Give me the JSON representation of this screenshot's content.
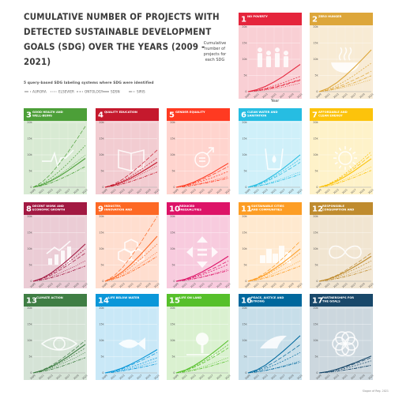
{
  "title": "Cumulative number of projects with detected Sustainable Development Goals (SDG) over the years (2009 - 2021)",
  "methods_title": "5 query-based SDG labeling systems where SDG were identified",
  "legend": [
    {
      "name": "AURORA",
      "dash": "5,2"
    },
    {
      "name": "ELSEVIER",
      "dash": "1,1.5"
    },
    {
      "name": "ONTOLOGY",
      "dash": "2,1.5"
    },
    {
      "name": "SDSN",
      "dash": ""
    },
    {
      "name": "SIRIS",
      "dash": "4,1.2,1,1.2"
    }
  ],
  "ylabel": "Cumulative number of projects for each SDG",
  "xlabel": "Year",
  "credit": "Slogan of Reg. 2021",
  "chart_data": {
    "type": "line",
    "x": [
      2009,
      2011,
      2013,
      2015,
      2017,
      2019,
      2021
    ],
    "x_ticks": [
      "2009",
      "2011",
      "2013",
      "2015",
      "2017",
      "2019",
      "2021"
    ],
    "ylim": [
      0,
      20000
    ],
    "y_ticks": [
      "0",
      "5k",
      "10k",
      "15k",
      "20k"
    ],
    "grid": true,
    "panels": [
      {
        "num": "1",
        "name": "NO POVERTY",
        "color": "#E5243B",
        "icon": "family-icon",
        "series": {
          "AURORA": [
            0,
            300,
            700,
            1200,
            1900,
            2700,
            3500
          ],
          "ELSEVIER": [
            0,
            200,
            500,
            900,
            1400,
            2000,
            2600
          ],
          "ONTOLOGY": [
            0,
            400,
            1000,
            1800,
            2700,
            3700,
            4700
          ],
          "SDSN": [
            0,
            600,
            1600,
            3000,
            4600,
            6500,
            8400
          ],
          "SIRIS": [
            0,
            300,
            800,
            1400,
            2100,
            2900,
            3700
          ]
        }
      },
      {
        "num": "2",
        "name": "ZERO HUNGER",
        "color": "#DDA63A",
        "icon": "bowl-icon",
        "series": {
          "AURORA": [
            0,
            500,
            1300,
            2400,
            3600,
            4900,
            6300
          ],
          "ELSEVIER": [
            0,
            300,
            800,
            1400,
            2100,
            2900,
            3700
          ],
          "ONTOLOGY": [
            0,
            700,
            1800,
            3300,
            5000,
            6900,
            8800
          ],
          "SDSN": [
            0,
            1000,
            2700,
            4900,
            7400,
            10100,
            12900
          ],
          "SIRIS": [
            0,
            400,
            1000,
            1800,
            2700,
            3800,
            4900
          ]
        }
      },
      {
        "num": "3",
        "name": "GOOD HEALTH AND WELL-BEING",
        "color": "#4C9F38",
        "icon": "heartbeat-icon",
        "series": {
          "AURORA": [
            0,
            1500,
            4000,
            7200,
            10800,
            14700,
            18800
          ],
          "ELSEVIER": [
            0,
            800,
            2100,
            3800,
            5700,
            7800,
            9900
          ],
          "ONTOLOGY": [
            0,
            1000,
            2700,
            4900,
            7400,
            10100,
            12900
          ],
          "SDSN": [
            0,
            700,
            1900,
            3400,
            5100,
            7000,
            8900
          ],
          "SIRIS": [
            0,
            500,
            1300,
            2400,
            3600,
            5000,
            6400
          ]
        }
      },
      {
        "num": "4",
        "name": "QUALITY EDUCATION",
        "color": "#C5192D",
        "icon": "book-icon",
        "series": {
          "AURORA": [
            0,
            900,
            2400,
            4400,
            6600,
            9000,
            11500
          ],
          "ELSEVIER": [
            0,
            500,
            1400,
            2500,
            3800,
            5200,
            6600
          ],
          "ONTOLOGY": [
            0,
            700,
            1900,
            3400,
            5200,
            7100,
            9000
          ],
          "SDSN": [
            0,
            600,
            1600,
            2900,
            4400,
            6000,
            7700
          ],
          "SIRIS": [
            0,
            400,
            1000,
            1800,
            2700,
            3700,
            4700
          ]
        }
      },
      {
        "num": "5",
        "name": "GENDER EQUALITY",
        "color": "#FF3A21",
        "icon": "gender-icon",
        "series": {
          "AURORA": [
            0,
            500,
            1300,
            2400,
            3600,
            5000,
            6400
          ],
          "ELSEVIER": [
            0,
            300,
            700,
            1300,
            1900,
            2600,
            3300
          ],
          "ONTOLOGY": [
            0,
            400,
            1000,
            1900,
            2800,
            3800,
            4900
          ],
          "SDSN": [
            0,
            600,
            1500,
            2800,
            4200,
            5800,
            7400
          ],
          "SIRIS": [
            0,
            200,
            600,
            1100,
            1600,
            2200,
            2800
          ]
        }
      },
      {
        "num": "6",
        "name": "CLEAN WATER AND SANITATION",
        "color": "#26BDE2",
        "icon": "water-glass-icon",
        "series": {
          "AURORA": [
            0,
            600,
            1600,
            2900,
            4400,
            6000,
            7700
          ],
          "ELSEVIER": [
            0,
            400,
            1000,
            1800,
            2700,
            3700,
            4700
          ],
          "ONTOLOGY": [
            0,
            700,
            1800,
            3300,
            5000,
            6800,
            8700
          ],
          "SDSN": [
            0,
            800,
            2100,
            3800,
            5700,
            7800,
            10000
          ],
          "SIRIS": [
            0,
            300,
            800,
            1500,
            2300,
            3100,
            4000
          ]
        }
      },
      {
        "num": "7",
        "name": "AFFORDABLE AND CLEAN ENERGY",
        "color": "#FCC30B",
        "icon": "sun-power-icon",
        "series": {
          "AURORA": [
            0,
            800,
            2100,
            3800,
            5700,
            7800,
            10000
          ],
          "ELSEVIER": [
            0,
            500,
            1300,
            2400,
            3600,
            4900,
            6300
          ],
          "ONTOLOGY": [
            0,
            900,
            2300,
            4200,
            6300,
            8600,
            11000
          ],
          "SDSN": [
            0,
            700,
            1800,
            3300,
            5000,
            6900,
            8800
          ],
          "SIRIS": [
            0,
            400,
            1100,
            2000,
            3000,
            4100,
            5200
          ]
        }
      },
      {
        "num": "8",
        "name": "DECENT WORK AND ECONOMIC GROWTH",
        "color": "#A21942",
        "icon": "growth-chart-icon",
        "series": {
          "AURORA": [
            0,
            700,
            1800,
            3300,
            5000,
            6800,
            8700
          ],
          "ELSEVIER": [
            0,
            500,
            1300,
            2400,
            3600,
            4900,
            6300
          ],
          "ONTOLOGY": [
            0,
            800,
            2100,
            3800,
            5700,
            7800,
            10000
          ],
          "SDSN": [
            0,
            900,
            2400,
            4400,
            6600,
            9000,
            11500
          ],
          "SIRIS": [
            0,
            400,
            1000,
            1800,
            2700,
            3700,
            4700
          ]
        }
      },
      {
        "num": "9",
        "name": "INDUSTRY, INNOVATION AND INFRASTRUCTURE",
        "color": "#FD6925",
        "icon": "cubes-icon",
        "series": {
          "AURORA": [
            0,
            1600,
            4200,
            7600,
            11500,
            15700,
            20000
          ],
          "ELSEVIER": [
            0,
            700,
            1900,
            3400,
            5200,
            7100,
            9000
          ],
          "ONTOLOGY": [
            0,
            900,
            2400,
            4400,
            6600,
            9000,
            11500
          ],
          "SDSN": [
            0,
            1100,
            2900,
            5300,
            8000,
            10900,
            13900
          ],
          "SIRIS": [
            0,
            600,
            1600,
            2900,
            4400,
            6000,
            7700
          ]
        }
      },
      {
        "num": "10",
        "name": "REDUCED INEQUALITIES",
        "color": "#DD1367",
        "icon": "equality-arrows-icon",
        "series": {
          "AURORA": [
            0,
            500,
            1300,
            2400,
            3600,
            4900,
            6300
          ],
          "ELSEVIER": [
            0,
            300,
            800,
            1400,
            2100,
            2900,
            3700
          ],
          "ONTOLOGY": [
            0,
            400,
            1100,
            2000,
            3000,
            4100,
            5200
          ],
          "SDSN": [
            0,
            600,
            1600,
            2900,
            4400,
            6000,
            7700
          ],
          "SIRIS": [
            0,
            300,
            700,
            1300,
            1900,
            2600,
            3300
          ]
        }
      },
      {
        "num": "11",
        "name": "SUSTAINABLE CITIES AND COMMUNITIES",
        "color": "#FD9D24",
        "icon": "city-icon",
        "series": {
          "AURORA": [
            0,
            1000,
            2600,
            4700,
            7100,
            9700,
            12400
          ],
          "ELSEVIER": [
            0,
            500,
            1300,
            2400,
            3600,
            4900,
            6300
          ],
          "ONTOLOGY": [
            0,
            700,
            1800,
            3300,
            5000,
            6800,
            8700
          ],
          "SDSN": [
            0,
            800,
            2100,
            3800,
            5700,
            7800,
            10000
          ],
          "SIRIS": [
            0,
            400,
            1000,
            1800,
            2700,
            3700,
            4700
          ]
        }
      },
      {
        "num": "12",
        "name": "RESPONSIBLE CONSUMPTION AND PRODUCTION",
        "color": "#BF8B2E",
        "icon": "infinity-icon",
        "series": {
          "AURORA": [
            0,
            700,
            1800,
            3300,
            5000,
            6800,
            8700
          ],
          "ELSEVIER": [
            0,
            400,
            1000,
            1800,
            2700,
            3700,
            4700
          ],
          "ONTOLOGY": [
            0,
            500,
            1300,
            2400,
            3600,
            4900,
            6300
          ],
          "SDSN": [
            0,
            600,
            1600,
            2900,
            4400,
            6000,
            7700
          ],
          "SIRIS": [
            0,
            300,
            800,
            1400,
            2100,
            2900,
            3700
          ]
        }
      },
      {
        "num": "13",
        "name": "CLIMATE ACTION",
        "color": "#3F7E44",
        "icon": "earth-eye-icon",
        "series": {
          "AURORA": [
            0,
            800,
            2100,
            3800,
            5700,
            7800,
            10000
          ],
          "ELSEVIER": [
            0,
            500,
            1300,
            2400,
            3600,
            4900,
            6300
          ],
          "ONTOLOGY": [
            0,
            600,
            1600,
            2900,
            4400,
            6000,
            7700
          ],
          "SDSN": [
            0,
            700,
            1800,
            3300,
            5000,
            6900,
            8800
          ],
          "SIRIS": [
            0,
            400,
            1000,
            1800,
            2700,
            3700,
            4700
          ]
        }
      },
      {
        "num": "14",
        "name": "LIFE BELOW WATER",
        "color": "#0A97D9",
        "icon": "fish-icon",
        "series": {
          "AURORA": [
            0,
            500,
            1300,
            2400,
            3600,
            4900,
            6300
          ],
          "ELSEVIER": [
            0,
            300,
            800,
            1400,
            2100,
            2900,
            3700
          ],
          "ONTOLOGY": [
            0,
            400,
            1000,
            1800,
            2700,
            3700,
            4700
          ],
          "SDSN": [
            0,
            600,
            1500,
            2700,
            4100,
            5600,
            7200
          ],
          "SIRIS": [
            0,
            200,
            600,
            1100,
            1600,
            2200,
            2800
          ]
        }
      },
      {
        "num": "15",
        "name": "LIFE ON LAND",
        "color": "#56C02B",
        "icon": "tree-birds-icon",
        "series": {
          "AURORA": [
            0,
            600,
            1600,
            2900,
            4400,
            6000,
            7700
          ],
          "ELSEVIER": [
            0,
            400,
            1000,
            1800,
            2700,
            3700,
            4700
          ],
          "ONTOLOGY": [
            0,
            700,
            1800,
            3300,
            5000,
            6800,
            8700
          ],
          "SDSN": [
            0,
            800,
            2100,
            3800,
            5700,
            7800,
            10000
          ],
          "SIRIS": [
            0,
            300,
            800,
            1400,
            2100,
            2900,
            3700
          ]
        }
      },
      {
        "num": "16",
        "name": "PEACE, JUSTICE AND STRONG INSTITUTIONS",
        "color": "#00689D",
        "icon": "dove-gavel-icon",
        "series": {
          "AURORA": [
            0,
            700,
            1800,
            3300,
            5000,
            6800,
            8700
          ],
          "ELSEVIER": [
            0,
            300,
            800,
            1400,
            2100,
            2900,
            3700
          ],
          "ONTOLOGY": [
            0,
            500,
            1300,
            2400,
            3600,
            4900,
            6300
          ],
          "SDSN": [
            0,
            900,
            2400,
            4400,
            6600,
            9000,
            11500
          ],
          "SIRIS": [
            0,
            300,
            700,
            1300,
            1900,
            2600,
            3300
          ]
        }
      },
      {
        "num": "17",
        "name": "PARTNERSHIPS FOR THE GOALS",
        "color": "#19486A",
        "icon": "rings-icon",
        "series": {
          "AURORA": [
            0,
            400,
            1000,
            1800,
            2700,
            3700,
            4700
          ],
          "ELSEVIER": [
            0,
            200,
            500,
            900,
            1400,
            1900,
            2400
          ],
          "ONTOLOGY": [
            0,
            300,
            800,
            1400,
            2100,
            2900,
            3700
          ],
          "SDSN": [
            0,
            400,
            1100,
            2000,
            3000,
            4100,
            5200
          ],
          "SIRIS": [
            0,
            200,
            500,
            900,
            1300,
            1800,
            2300
          ]
        }
      }
    ]
  }
}
